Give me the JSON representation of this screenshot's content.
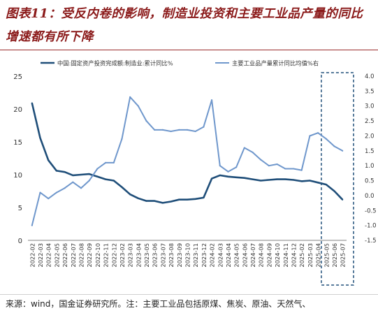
{
  "title": "图表11：受反内卷的影响，制造业投资和主要工业品产量的同比增速都有所下降",
  "source": "来源：wind，国金证券研究所。注：主要工业品包括原煤、焦炭、原油、天然气、",
  "colors": {
    "series1": "#1f4e79",
    "series2": "#6f97cc",
    "title": "#8b1a1a",
    "highlight": "#1f4e79"
  },
  "chart_data": {
    "type": "line",
    "categories": [
      "2022-02",
      "2022-03",
      "2022-04",
      "2022-05",
      "2022-06",
      "2022-07",
      "2022-08",
      "2022-09",
      "2022-10",
      "2022-11",
      "2022-12",
      "2023-02",
      "2023-03",
      "2023-04",
      "2023-05",
      "2023-06",
      "2023-07",
      "2023-08",
      "2023-09",
      "2023-10",
      "2023-11",
      "2023-12",
      "2024-02",
      "2024-03",
      "2024-04",
      "2024-05",
      "2024-06",
      "2024-07",
      "2024-08",
      "2024-09",
      "2024-10",
      "2024-11",
      "2024-12",
      "2025-02",
      "2025-03",
      "2025-04",
      "2025-05",
      "2025-06",
      "2025-07"
    ],
    "series": [
      {
        "name": "中国:固定资产投资完成额:制造业:累计同比%",
        "axis": "left",
        "values": [
          20.9,
          15.6,
          12.2,
          10.6,
          10.4,
          9.9,
          10.0,
          10.1,
          9.7,
          9.3,
          9.1,
          8.1,
          7.0,
          6.4,
          6.0,
          6.0,
          5.7,
          5.9,
          6.2,
          6.2,
          6.3,
          6.5,
          9.4,
          9.9,
          9.7,
          9.6,
          9.5,
          9.3,
          9.1,
          9.2,
          9.3,
          9.3,
          9.2,
          9.0,
          9.1,
          8.8,
          8.5,
          7.5,
          6.2
        ]
      },
      {
        "name": "主要工业品产量累计同比均值%右",
        "axis": "right",
        "values": [
          -1.0,
          0.1,
          -0.1,
          0.1,
          0.25,
          0.45,
          0.25,
          0.5,
          0.9,
          1.1,
          1.1,
          1.9,
          3.3,
          3.0,
          2.5,
          2.2,
          2.2,
          2.15,
          2.2,
          2.2,
          2.15,
          2.3,
          3.2,
          1.0,
          0.8,
          0.95,
          1.6,
          1.45,
          1.2,
          1.0,
          1.05,
          0.9,
          0.9,
          0.85,
          2.0,
          2.1,
          1.9,
          1.65,
          1.5
        ]
      }
    ],
    "y_left": {
      "min": 0,
      "max": 25,
      "ticks": [
        0,
        5,
        10,
        15,
        20,
        25
      ]
    },
    "y_right": {
      "min": -1.5,
      "max": 4.0,
      "ticks": [
        "-1.5",
        "-1.0",
        "-0.5",
        "0.0",
        "0.5",
        "1.0",
        "1.5",
        "2.0",
        "2.5",
        "3.0",
        "3.5",
        "4.0"
      ]
    },
    "legend_position": "top",
    "highlight_last_n": 3
  }
}
